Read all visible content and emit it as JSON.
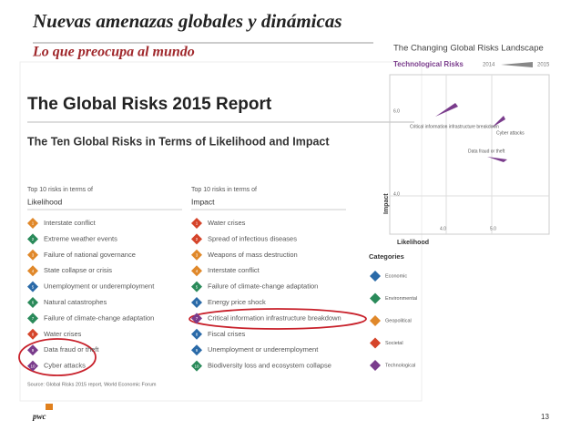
{
  "header": {
    "title": "Nuevas amenazas globales y dinámicas",
    "subtitle": "Lo que preocupa al mundo"
  },
  "report": {
    "title": "The Global Risks 2015 Report",
    "subtitle": "The Ten Global Risks in Terms of Likelihood and Impact",
    "columns": [
      {
        "heading": "Top 10 risks in terms of",
        "name": "Likelihood",
        "items": [
          {
            "rank": "1",
            "label": "Interstate conflict"
          },
          {
            "rank": "2",
            "label": "Extreme weather events"
          },
          {
            "rank": "3",
            "label": "Failure of national governance"
          },
          {
            "rank": "4",
            "label": "State collapse or crisis"
          },
          {
            "rank": "5",
            "label": "Unemployment or underemployment"
          },
          {
            "rank": "6",
            "label": "Natural catastrophes"
          },
          {
            "rank": "7",
            "label": "Failure of climate-change adaptation"
          },
          {
            "rank": "8",
            "label": "Water crises"
          },
          {
            "rank": "9",
            "label": "Data fraud or theft"
          },
          {
            "rank": "10",
            "label": "Cyber attacks"
          }
        ]
      },
      {
        "heading": "Top 10 risks in terms of",
        "name": "Impact",
        "items": [
          {
            "rank": "1",
            "label": "Water crises"
          },
          {
            "rank": "2",
            "label": "Spread of infectious diseases"
          },
          {
            "rank": "3",
            "label": "Weapons of mass destruction"
          },
          {
            "rank": "4",
            "label": "Interstate conflict"
          },
          {
            "rank": "5",
            "label": "Failure of climate-change adaptation"
          },
          {
            "rank": "6",
            "label": "Energy price shock"
          },
          {
            "rank": "7",
            "label": "Critical information infrastructure breakdown"
          },
          {
            "rank": "8",
            "label": "Fiscal crises"
          },
          {
            "rank": "9",
            "label": "Unemployment or underemployment"
          },
          {
            "rank": "10",
            "label": "Biodiversity loss and ecosystem collapse"
          }
        ]
      }
    ],
    "source": "Source: Global Risks 2015 report, World Economic Forum"
  },
  "inset": {
    "title": "The Changing Global Risks Landscape",
    "subtitle": "Technological Risks",
    "year_start": "2014",
    "year_end": "2015",
    "labels": [
      "Critical information infrastructure breakdown",
      "Cyber attacks",
      "Data fraud or theft"
    ],
    "y_label": "Impact",
    "x_label": "Likelihood",
    "y_ticks": [
      "6.0",
      "4.0"
    ],
    "x_ticks": [
      "4.0",
      "5.0"
    ]
  },
  "legend": {
    "title": "Categories",
    "items": [
      "Economic",
      "Environmental",
      "Geopolitical",
      "Societal",
      "Technological"
    ]
  },
  "footer": {
    "logo": "pwc",
    "page": "13"
  }
}
